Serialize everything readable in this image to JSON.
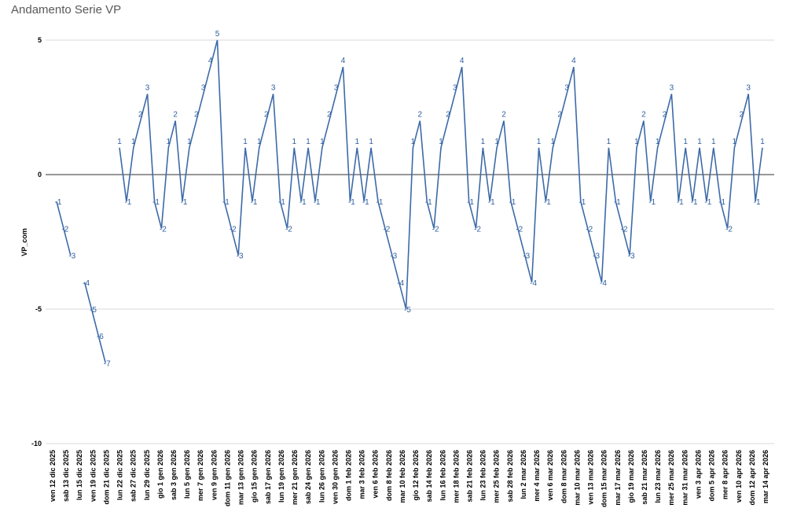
{
  "chart_data": {
    "type": "line",
    "title": "Andamento Serie VP",
    "ylabel": "VP_com",
    "xlabel": "",
    "ylim": [
      -10,
      5
    ],
    "yticks": [
      5,
      0,
      -5,
      -10
    ],
    "grid": true,
    "line_color": "#3d6aa8",
    "label_color": "#2e5fa0",
    "xtick_labels": [
      "ven 12 dic 2025",
      "sab 13 dic 2025",
      "lun 15 dic 2025",
      "ven 19 dic 2025",
      "dom 21 dic 2025",
      "lun 22 dic 2025",
      "sab 27 dic 2025",
      "lun 29 dic 2025",
      "gio 1 gen 2026",
      "sab 3 gen 2026",
      "lun 5 gen 2026",
      "mer 7 gen 2026",
      "ven 9 gen 2026",
      "dom 11 gen 2026",
      "mar 13 gen 2026",
      "gio 15 gen 2026",
      "sab 17 gen 2026",
      "lun 19 gen 2026",
      "mer 21 gen 2026",
      "sab 24 gen 2026",
      "lun 26 gen 2026",
      "ven 30 gen 2026",
      "dom 1 feb 2026",
      "mar 3 feb 2026",
      "ven 6 feb 2026",
      "dom 8 feb 2026",
      "mar 10 feb 2026",
      "gio 12 feb 2026",
      "sab 14 feb 2026",
      "lun 16 feb 2026",
      "mer 18 feb 2026",
      "sab 21 feb 2026",
      "lun 23 feb 2026",
      "mer 25 feb 2026",
      "sab 28 feb 2026",
      "lun 2 mar 2026",
      "mer 4 mar 2026",
      "ven 6 mar 2026",
      "dom 8 mar 2026",
      "mar 10 mar 2026",
      "ven 13 mar 2026",
      "dom 15 mar 2026",
      "mar 17 mar 2026",
      "gio 19 mar 2026",
      "sab 21 mar 2026",
      "lun 23 mar 2026",
      "mer 25 mar 2026",
      "mar 31 mar 2026",
      "ven 3 apr 2026",
      "dom 5 apr 2026",
      "mer 8 apr 2026",
      "ven 10 apr 2026",
      "dom 12 apr 2026",
      "mar 14 apr 2026"
    ],
    "series": [
      {
        "values": [
          -1,
          -2,
          -3,
          null,
          -4,
          -5,
          -6,
          -7,
          null,
          1,
          -1,
          1,
          2,
          3,
          -1,
          -2,
          1,
          2,
          -1,
          1,
          2,
          3,
          4,
          5,
          -1,
          -2,
          -3,
          1,
          -1,
          1,
          2,
          3,
          -1,
          -2,
          1,
          -1,
          1,
          -1,
          1,
          2,
          3,
          4,
          -1,
          1,
          -1,
          1,
          -1,
          -2,
          -3,
          -4,
          -5,
          1,
          2,
          -1,
          -2,
          1,
          2,
          3,
          4,
          -1,
          -2,
          1,
          -1,
          1,
          2,
          -1,
          -2,
          -3,
          -4,
          1,
          -1,
          1,
          2,
          3,
          4,
          -1,
          -2,
          -3,
          -4,
          1,
          -1,
          -2,
          -3,
          1,
          2,
          -1,
          1,
          2,
          3,
          -1,
          1,
          -1,
          1,
          -1,
          1,
          -1,
          -2,
          1,
          2,
          3,
          -1,
          1
        ]
      }
    ]
  }
}
